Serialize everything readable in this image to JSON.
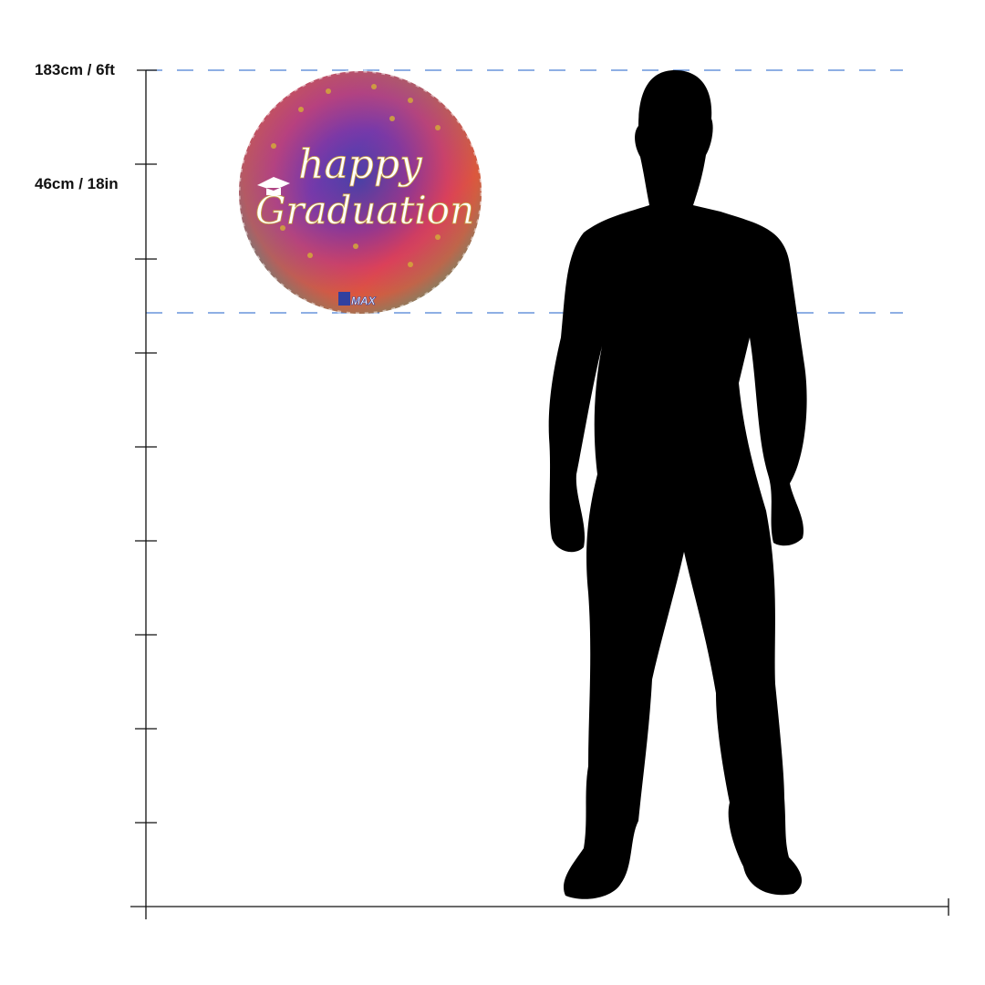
{
  "scale": {
    "top_label": "183cm / 6ft",
    "item_label": "46cm / 18in",
    "guide_color": "#4a7fd4"
  },
  "balloon": {
    "line1": "happy",
    "line2": "Graduation",
    "brand": "MAX",
    "icon": "graduation-cap-icon"
  },
  "figure": {
    "icon": "person-silhouette-icon"
  }
}
